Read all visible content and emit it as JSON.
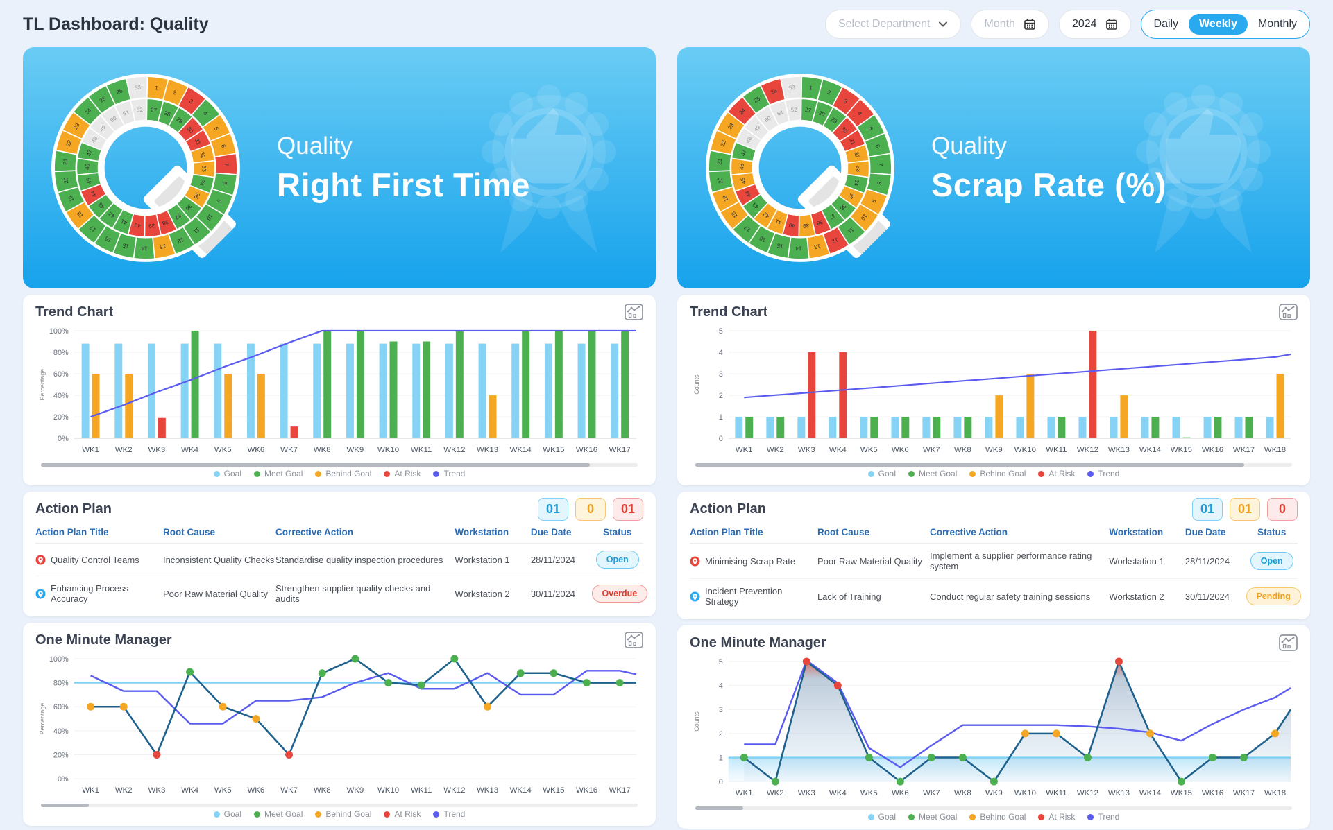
{
  "topbar": {
    "title": "TL Dashboard: Quality",
    "department_select": {
      "placeholder": "Select Department"
    },
    "month_picker": {
      "placeholder": "Month"
    },
    "year_picker": {
      "value": "2024"
    },
    "view_toggle": {
      "options": [
        "Daily",
        "Weekly",
        "Monthly"
      ],
      "active": "Weekly"
    }
  },
  "sections": {
    "trend": "Trend Chart",
    "action": "Action Plan",
    "omm": "One Minute Manager"
  },
  "legend": [
    "Goal",
    "Meet Goal",
    "Behind Goal",
    "At Risk",
    "Trend"
  ],
  "legend_status": [
    "goal",
    "meet",
    "behind",
    "risk",
    "trend"
  ],
  "status_colors": {
    "goal": "#87d3f5",
    "meet": "#4caf50",
    "behind": "#f5a623",
    "risk": "#e8453c",
    "trend": "#5b5bf0",
    "future": "#e9e9e9",
    "navy_line": "#1f618d",
    "goal_line": "#7fd0f5"
  },
  "ui_colors": {
    "accent_blue": "#29a9ee",
    "hero_gradient_top": "#6accf4",
    "hero_gradient_bottom": "#16a2ec",
    "header_text_blue": "#2a6bb5"
  },
  "action_columns": [
    "Action Plan Title",
    "Root Cause",
    "Corrective Action",
    "Workstation",
    "Due Date",
    "Status"
  ],
  "status_styles": {
    "Open": "open",
    "Overdue": "overdue",
    "Pending": "pending"
  },
  "chart_data": {
    "note": "see panels[].trend_chart and panels[].omm_chart"
  },
  "panels": [
    {
      "hero": {
        "category": "Quality",
        "metric": "Right First Time"
      },
      "q_logo": {
        "outer_labels": [
          1,
          2,
          3,
          4,
          5,
          6,
          7,
          8,
          9,
          10,
          11,
          12,
          13,
          14,
          15,
          16,
          17,
          18,
          19,
          20,
          21,
          22,
          23,
          24,
          25,
          26,
          53
        ],
        "outer_status": [
          "b",
          "b",
          "r",
          "m",
          "b",
          "b",
          "r",
          "m",
          "m",
          "m",
          "m",
          "m",
          "b",
          "m",
          "m",
          "m",
          "m",
          "b",
          "m",
          "m",
          "m",
          "b",
          "b",
          "m",
          "m",
          "m",
          "f"
        ],
        "inner_labels": [
          27,
          28,
          29,
          30,
          31,
          32,
          33,
          34,
          35,
          36,
          37,
          38,
          39,
          40,
          41,
          42,
          43,
          44,
          45,
          46,
          47,
          48,
          49,
          50,
          51,
          52
        ],
        "inner_status": [
          "m",
          "m",
          "m",
          "r",
          "r",
          "b",
          "b",
          "m",
          "b",
          "m",
          "m",
          "r",
          "r",
          "r",
          "m",
          "m",
          "m",
          "r",
          "m",
          "m",
          "m",
          "f",
          "f",
          "f",
          "f",
          "f"
        ]
      },
      "trend_chart": {
        "type": "bar+line",
        "ylabel": "Percentage",
        "y_suffix": "%",
        "ymax": 100,
        "y_ticks": [
          0,
          20,
          40,
          60,
          80,
          100
        ],
        "categories": [
          "WK1",
          "WK2",
          "WK3",
          "WK4",
          "WK5",
          "WK6",
          "WK7",
          "WK8",
          "WK9",
          "WK10",
          "WK11",
          "WK12",
          "WK13",
          "WK14",
          "WK15",
          "WK16",
          "WK17"
        ],
        "goal_value": 88,
        "values": [
          60,
          60,
          19,
          100,
          60,
          60,
          11,
          100,
          100,
          90,
          90,
          100,
          40,
          100,
          100,
          100,
          100
        ],
        "status": [
          "b",
          "b",
          "r",
          "m",
          "b",
          "b",
          "r",
          "m",
          "m",
          "m",
          "m",
          "m",
          "b",
          "m",
          "m",
          "m",
          "m"
        ],
        "trend": [
          20,
          31,
          43,
          54,
          66,
          77,
          89,
          100,
          100,
          100,
          100,
          100,
          100,
          100,
          100,
          100,
          100
        ],
        "trend_edge": 100
      },
      "action_plan": {
        "counts": [
          {
            "value": "01",
            "style": "open"
          },
          {
            "value": "0",
            "style": "pending"
          },
          {
            "value": "01",
            "style": "overdue"
          }
        ],
        "rows": [
          {
            "pin_color": "#e8453c",
            "title": "Quality Control Teams",
            "root_cause": "Inconsistent Quality Checks",
            "corrective_action": "Standardise quality inspection procedures",
            "workstation": "Workstation 1",
            "due_date": "28/11/2024",
            "status": "Open"
          },
          {
            "pin_color": "#29a9ee",
            "title": "Enhancing Process Accuracy",
            "root_cause": "Poor Raw Material Quality",
            "corrective_action": "Strengthen supplier quality checks and audits",
            "workstation": "Workstation 2",
            "due_date": "30/11/2024",
            "status": "Overdue"
          }
        ]
      },
      "omm_chart": {
        "type": "line",
        "ylabel": "Percentage",
        "y_suffix": "%",
        "ymax": 100,
        "y_ticks": [
          0,
          20,
          40,
          60,
          80,
          100
        ],
        "categories": [
          "WK1",
          "WK2",
          "WK3",
          "WK4",
          "WK5",
          "WK6",
          "WK7",
          "WK8",
          "WK9",
          "WK10",
          "WK11",
          "WK12",
          "WK13",
          "WK14",
          "WK15",
          "WK16",
          "WK17"
        ],
        "goal_value": 80,
        "values": [
          60,
          60,
          20,
          89,
          60,
          50,
          20,
          88,
          100,
          80,
          78,
          100,
          60,
          88,
          88,
          80,
          80
        ],
        "status": [
          "b",
          "b",
          "r",
          "m",
          "b",
          "b",
          "r",
          "m",
          "m",
          "m",
          "m",
          "m",
          "b",
          "m",
          "m",
          "m",
          "m"
        ],
        "trend": [
          86,
          73,
          73,
          46,
          46,
          65,
          65,
          68,
          80,
          88,
          75,
          75,
          88,
          70,
          70,
          90,
          90
        ],
        "edge_value": 80,
        "trend_edge": 87,
        "goal_fill": false,
        "area_fill": false
      }
    },
    {
      "hero": {
        "category": "Quality",
        "metric": "Scrap Rate (%)"
      },
      "q_logo": {
        "outer_labels": [
          1,
          2,
          3,
          4,
          5,
          6,
          7,
          8,
          9,
          10,
          11,
          12,
          13,
          14,
          15,
          16,
          17,
          18,
          19,
          20,
          21,
          22,
          23,
          24,
          25,
          26,
          53
        ],
        "outer_status": [
          "m",
          "m",
          "r",
          "r",
          "m",
          "m",
          "m",
          "m",
          "b",
          "b",
          "m",
          "r",
          "b",
          "m",
          "m",
          "m",
          "m",
          "b",
          "b",
          "m",
          "m",
          "b",
          "b",
          "r",
          "m",
          "r",
          "f"
        ],
        "inner_labels": [
          27,
          28,
          29,
          30,
          31,
          32,
          33,
          34,
          35,
          36,
          37,
          38,
          39,
          40,
          41,
          42,
          43,
          44,
          45,
          46,
          47,
          48,
          49,
          50,
          51,
          52
        ],
        "inner_status": [
          "m",
          "m",
          "m",
          "r",
          "r",
          "b",
          "b",
          "m",
          "b",
          "m",
          "m",
          "r",
          "b",
          "r",
          "b",
          "b",
          "m",
          "r",
          "b",
          "b",
          "m",
          "f",
          "f",
          "f",
          "f",
          "f"
        ]
      },
      "trend_chart": {
        "type": "bar+line",
        "ylabel": "Counts",
        "y_suffix": "",
        "ymax": 5,
        "y_ticks": [
          0,
          1,
          2,
          3,
          4,
          5
        ],
        "categories": [
          "WK1",
          "WK2",
          "WK3",
          "WK4",
          "WK5",
          "WK6",
          "WK7",
          "WK8",
          "WK9",
          "WK10",
          "WK11",
          "WK12",
          "WK13",
          "WK14",
          "WK15",
          "WK16",
          "WK17",
          "WK18"
        ],
        "goal_value": 1,
        "values": [
          1,
          1,
          4,
          4,
          1,
          1,
          1,
          1,
          2,
          3,
          1,
          5,
          2,
          1,
          0.05,
          1,
          1,
          3
        ],
        "status": [
          "m",
          "m",
          "r",
          "r",
          "m",
          "m",
          "m",
          "m",
          "b",
          "b",
          "m",
          "r",
          "b",
          "m",
          "m",
          "m",
          "m",
          "b"
        ],
        "trend": [
          1.9,
          2.01,
          2.12,
          2.23,
          2.34,
          2.45,
          2.56,
          2.67,
          2.78,
          2.89,
          3.0,
          3.11,
          3.22,
          3.33,
          3.44,
          3.55,
          3.66,
          3.78
        ],
        "trend_edge": 3.9
      },
      "action_plan": {
        "counts": [
          {
            "value": "01",
            "style": "open"
          },
          {
            "value": "01",
            "style": "pending"
          },
          {
            "value": "0",
            "style": "overdue"
          }
        ],
        "rows": [
          {
            "pin_color": "#e8453c",
            "title": "Minimising Scrap Rate",
            "root_cause": "Poor Raw Material Quality",
            "corrective_action": "Implement a supplier performance rating system",
            "workstation": "Workstation 1",
            "due_date": "28/11/2024",
            "status": "Open"
          },
          {
            "pin_color": "#29a9ee",
            "title": "Incident Prevention Strategy",
            "root_cause": "Lack of Training",
            "corrective_action": "Conduct regular safety training sessions",
            "workstation": "Workstation 2",
            "due_date": "30/11/2024",
            "status": "Pending"
          }
        ]
      },
      "omm_chart": {
        "type": "line",
        "ylabel": "Counts",
        "y_suffix": "",
        "ymax": 5,
        "y_ticks": [
          0,
          1,
          2,
          3,
          4,
          5
        ],
        "categories": [
          "WK1",
          "WK2",
          "WK3",
          "WK4",
          "WK5",
          "WK6",
          "WK7",
          "WK8",
          "WK9",
          "WK10",
          "WK11",
          "WK12",
          "WK13",
          "WK14",
          "WK15",
          "WK16",
          "WK17",
          "WK18"
        ],
        "goal_value": 1,
        "values": [
          1,
          0,
          5,
          4,
          1,
          0,
          1,
          1,
          0,
          2,
          2,
          1,
          5,
          2,
          0,
          1,
          1,
          2
        ],
        "status": [
          "m",
          "m",
          "r",
          "r",
          "m",
          "m",
          "m",
          "m",
          "m",
          "b",
          "b",
          "m",
          "r",
          "b",
          "m",
          "m",
          "m",
          "b"
        ],
        "trend": [
          1.55,
          1.55,
          5.05,
          4.1,
          1.4,
          0.6,
          1.5,
          2.35,
          2.35,
          2.35,
          2.35,
          2.3,
          2.2,
          2.05,
          1.7,
          2.4,
          3.0,
          3.5
        ],
        "edge_value": 3,
        "trend_edge": 3.9,
        "goal_fill": true,
        "area_fill": true
      }
    }
  ]
}
